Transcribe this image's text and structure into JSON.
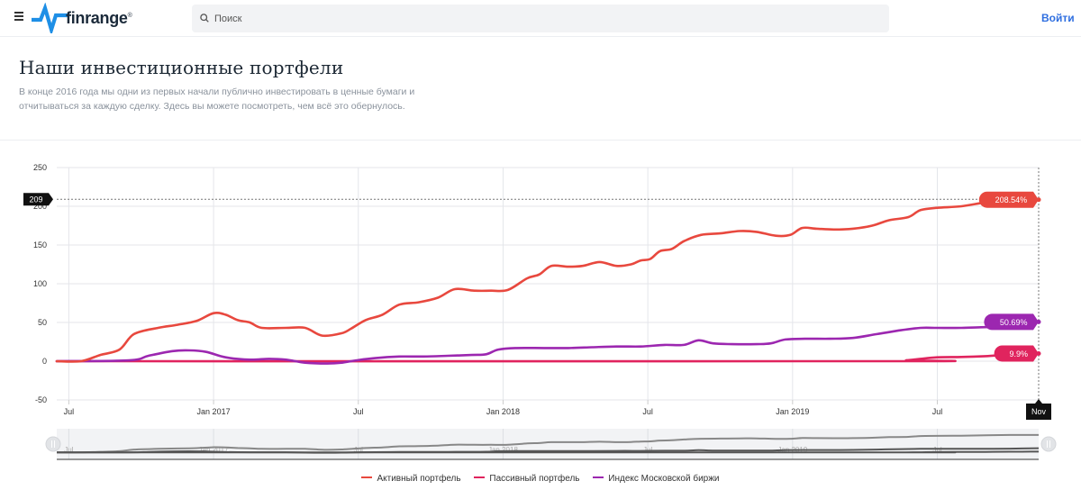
{
  "header": {
    "brand": "finrange",
    "brand_mark": "®",
    "search_placeholder": "Поиск",
    "login_label": "Войти"
  },
  "page": {
    "title": "Наши инвестиционные портфели",
    "description": "В конце 2016 года мы одни из первых начали публично инвестировать в ценные бумаги и отчитываться за каждую сделку. Здесь вы можете посмотреть, чем всё это обернулось."
  },
  "colors": {
    "active": "#e8483e",
    "passive": "#e0245e",
    "index": "#9c27b0",
    "brand": "#1e8fe6",
    "link": "#2f6fe0"
  },
  "chart_data": {
    "type": "line",
    "t_start": 0,
    "t_end": 40.7,
    "x_ticks": [
      {
        "t": 0.5,
        "label": "Jul"
      },
      {
        "t": 6.5,
        "label": "Jan 2017"
      },
      {
        "t": 12.5,
        "label": "Jul"
      },
      {
        "t": 18.5,
        "label": "Jan 2018"
      },
      {
        "t": 24.5,
        "label": "Jul"
      },
      {
        "t": 30.5,
        "label": "Jan 2019"
      },
      {
        "t": 36.5,
        "label": "Jul"
      }
    ],
    "y_ticks": [
      -50,
      0,
      50,
      100,
      150,
      200,
      250
    ],
    "ylim": [
      -50,
      250
    ],
    "crosshair": {
      "y_label": "209",
      "y_value": 209,
      "x_label": "Nov",
      "t": 40.7
    },
    "series": [
      {
        "name": "Активный портфель",
        "color_key": "active",
        "end_label": "208.54%",
        "points": [
          [
            0,
            0
          ],
          [
            1,
            0
          ],
          [
            1.8,
            8
          ],
          [
            2.6,
            15
          ],
          [
            3.2,
            35
          ],
          [
            4.2,
            43
          ],
          [
            5,
            47
          ],
          [
            5.8,
            52
          ],
          [
            6.5,
            62
          ],
          [
            7,
            60
          ],
          [
            7.5,
            53
          ],
          [
            8,
            50
          ],
          [
            8.5,
            43
          ],
          [
            9.5,
            43
          ],
          [
            10.3,
            43
          ],
          [
            11,
            33
          ],
          [
            11.8,
            36
          ],
          [
            12.2,
            42
          ],
          [
            12.8,
            53
          ],
          [
            13.5,
            60
          ],
          [
            14.2,
            73
          ],
          [
            15,
            76
          ],
          [
            15.8,
            82
          ],
          [
            16.5,
            93
          ],
          [
            17.3,
            91
          ],
          [
            18,
            91
          ],
          [
            18.7,
            92
          ],
          [
            19.5,
            107
          ],
          [
            20,
            112
          ],
          [
            20.5,
            123
          ],
          [
            21.2,
            122
          ],
          [
            21.8,
            123
          ],
          [
            22.5,
            128
          ],
          [
            23.2,
            123
          ],
          [
            23.8,
            125
          ],
          [
            24.2,
            130
          ],
          [
            24.6,
            132
          ],
          [
            25,
            142
          ],
          [
            25.5,
            145
          ],
          [
            26,
            155
          ],
          [
            26.7,
            163
          ],
          [
            27.5,
            165
          ],
          [
            28.3,
            168
          ],
          [
            29,
            167
          ],
          [
            29.8,
            162
          ],
          [
            30.4,
            163
          ],
          [
            30.9,
            172
          ],
          [
            31.5,
            171
          ],
          [
            32.2,
            170
          ],
          [
            33,
            171
          ],
          [
            33.8,
            175
          ],
          [
            34.5,
            182
          ],
          [
            35.3,
            186
          ],
          [
            35.8,
            195
          ],
          [
            36.5,
            198
          ],
          [
            37.5,
            200
          ],
          [
            38.5,
            205
          ],
          [
            39.5,
            208
          ],
          [
            40.7,
            208.5
          ]
        ]
      },
      {
        "name": "Пассивный портфель",
        "color_key": "passive",
        "end_label": "9.9%",
        "points": [
          [
            0,
            0
          ],
          [
            34.5,
            0
          ],
          [
            35.2,
            1
          ],
          [
            35.8,
            3
          ],
          [
            36.5,
            5
          ],
          [
            37.5,
            5.5
          ],
          [
            38.5,
            6.5
          ],
          [
            39.5,
            8.5
          ],
          [
            40.7,
            9.9
          ]
        ]
      },
      {
        "name": "Индекс Московской биржи",
        "color_key": "index",
        "end_label": "50.69%",
        "points": [
          [
            0,
            0
          ],
          [
            3,
            1
          ],
          [
            3.8,
            7
          ],
          [
            4.8,
            13
          ],
          [
            5.5,
            14
          ],
          [
            6.2,
            12
          ],
          [
            7,
            5
          ],
          [
            8,
            2
          ],
          [
            8.8,
            3
          ],
          [
            9.5,
            2
          ],
          [
            10.3,
            -2
          ],
          [
            11.2,
            -3
          ],
          [
            11.8,
            -2
          ],
          [
            12.4,
            1
          ],
          [
            13.2,
            4
          ],
          [
            14.2,
            6
          ],
          [
            15.2,
            6
          ],
          [
            16.2,
            7
          ],
          [
            17.2,
            8
          ],
          [
            17.8,
            9
          ],
          [
            18.3,
            15
          ],
          [
            19,
            17
          ],
          [
            20.2,
            17
          ],
          [
            21.2,
            17
          ],
          [
            22.2,
            18
          ],
          [
            23.2,
            19
          ],
          [
            24.2,
            19
          ],
          [
            25.2,
            21
          ],
          [
            26,
            21
          ],
          [
            26.6,
            27
          ],
          [
            27.2,
            23
          ],
          [
            28,
            22
          ],
          [
            29,
            22
          ],
          [
            29.6,
            23
          ],
          [
            30.2,
            28
          ],
          [
            31,
            29
          ],
          [
            32,
            29
          ],
          [
            33,
            30
          ],
          [
            34,
            35
          ],
          [
            35,
            40
          ],
          [
            35.8,
            43
          ],
          [
            36.5,
            43
          ],
          [
            37.5,
            43
          ],
          [
            38.5,
            44
          ],
          [
            39.5,
            45
          ],
          [
            40.7,
            50.7
          ]
        ]
      }
    ],
    "navigator_ticks": [
      "Jul",
      "Jan 2017",
      "Jul",
      "Jan 2018",
      "Jul",
      "Jan 2019",
      "Jul"
    ]
  }
}
